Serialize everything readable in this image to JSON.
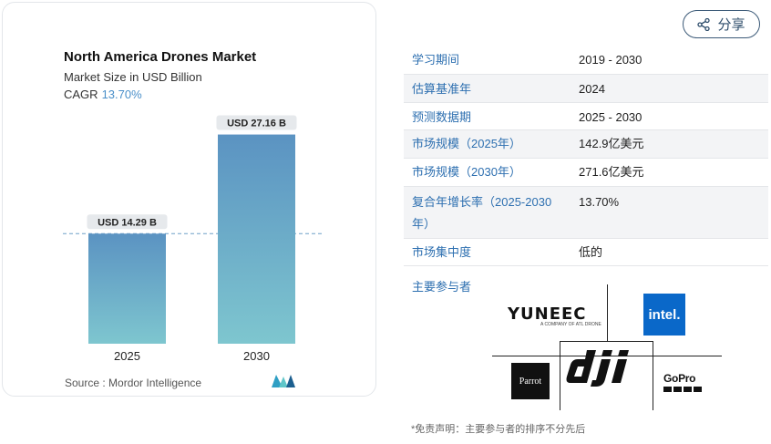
{
  "chart_data": {
    "type": "bar",
    "title": "North America Drones Market",
    "subtitle": "Market Size in USD Billion",
    "cagr_label": "CAGR",
    "cagr_value": "13.70%",
    "categories": [
      "2025",
      "2030"
    ],
    "values": [
      14.29,
      27.16
    ],
    "data_labels": [
      "USD 14.29 B",
      "USD 27.16 B"
    ],
    "ylim": [
      0,
      30
    ],
    "grid": false,
    "reference_line": "dashed line at 2025 value",
    "colors": {
      "bar_top": "#5b93c2",
      "bar_bottom": "#7ec6cf",
      "label_bg": "#e6e9ec",
      "dash": "#6fa0c8"
    }
  },
  "source_text": "Source :  Mordor Intelligence",
  "share": {
    "label": "分享",
    "icon": "share-icon"
  },
  "info_table": [
    {
      "key": "学习期间",
      "value": "2019 - 2030"
    },
    {
      "key": "估算基准年",
      "value": "2024"
    },
    {
      "key": "预测数据期",
      "value": "2025 - 2030"
    },
    {
      "key": "市场规模（2025年）",
      "value": "142.9亿美元"
    },
    {
      "key": "市场规模（2030年）",
      "value": "271.6亿美元"
    },
    {
      "key": "复合年增长率（2025-2030年）",
      "key_line1": "复合年增长率（2025-2030",
      "key_line2": "年）",
      "value": "13.70%"
    },
    {
      "key": "市场集中度",
      "value": "低的"
    }
  ],
  "players": {
    "label": "主要参与者",
    "yuneec": "YUNEEC",
    "yuneec_tag": "A COMPANY OF ATL DRONE",
    "intel": "intel.",
    "parrot": "Parrot",
    "dji": "dji",
    "gopro": "GoPro"
  },
  "disclaimer": "*免责声明：主要参与者的排序不分先后"
}
